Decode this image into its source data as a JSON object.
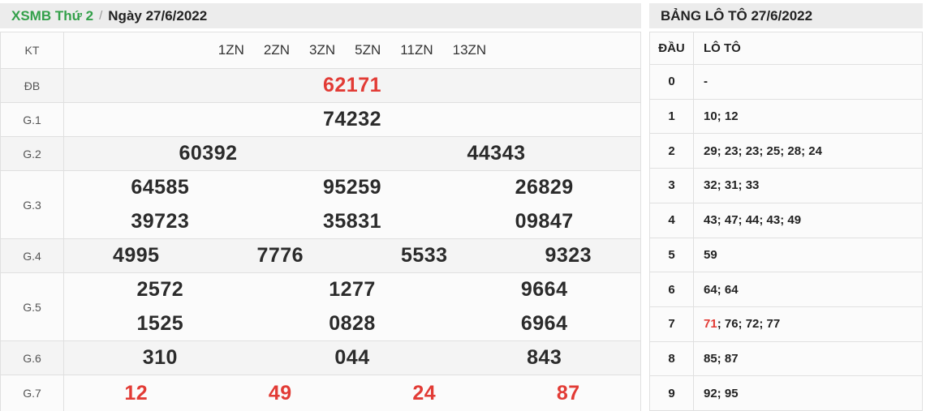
{
  "colors": {
    "accent_green": "#33a04a",
    "accent_red": "#e23b35",
    "bar_bg": "#ececec"
  },
  "left_panel": {
    "title": {
      "breadcrumb": "XSMB Thứ 2",
      "separator": "/",
      "date_label": "Ngày 27/6/2022"
    },
    "header_row": {
      "label": "KT",
      "options": [
        "1ZN",
        "2ZN",
        "3ZN",
        "5ZN",
        "11ZN",
        "13ZN"
      ]
    },
    "rows": [
      {
        "label": "ĐB",
        "lines": [
          [
            "62171"
          ]
        ]
      },
      {
        "label": "G.1",
        "lines": [
          [
            "74232"
          ]
        ]
      },
      {
        "label": "G.2",
        "lines": [
          [
            "60392",
            "44343"
          ]
        ]
      },
      {
        "label": "G.3",
        "lines": [
          [
            "64585",
            "95259",
            "26829"
          ],
          [
            "39723",
            "35831",
            "09847"
          ]
        ]
      },
      {
        "label": "G.4",
        "lines": [
          [
            "4995",
            "7776",
            "5533",
            "9323"
          ]
        ]
      },
      {
        "label": "G.5",
        "lines": [
          [
            "2572",
            "1277",
            "9664"
          ],
          [
            "1525",
            "0828",
            "6964"
          ]
        ]
      },
      {
        "label": "G.6",
        "lines": [
          [
            "310",
            "044",
            "843"
          ]
        ]
      },
      {
        "label": "G.7",
        "lines": [
          [
            "12",
            "49",
            "24",
            "87"
          ]
        ]
      }
    ]
  },
  "right_panel": {
    "title": "BẢNG LÔ TÔ 27/6/2022",
    "columns": {
      "head": "ĐẦU",
      "loto": "LÔ TÔ"
    },
    "rows": [
      {
        "head": "0",
        "red": "",
        "rest": "-"
      },
      {
        "head": "1",
        "red": "",
        "rest": "10; 12"
      },
      {
        "head": "2",
        "red": "",
        "rest": "29; 23; 23; 25; 28; 24"
      },
      {
        "head": "3",
        "red": "",
        "rest": "32; 31; 33"
      },
      {
        "head": "4",
        "red": "",
        "rest": "43; 47; 44; 43; 49"
      },
      {
        "head": "5",
        "red": "",
        "rest": "59"
      },
      {
        "head": "6",
        "red": "",
        "rest": "64; 64"
      },
      {
        "head": "7",
        "red": "71",
        "rest": "; 76; 72; 77"
      },
      {
        "head": "8",
        "red": "",
        "rest": "85; 87"
      },
      {
        "head": "9",
        "red": "",
        "rest": "92; 95"
      }
    ]
  }
}
